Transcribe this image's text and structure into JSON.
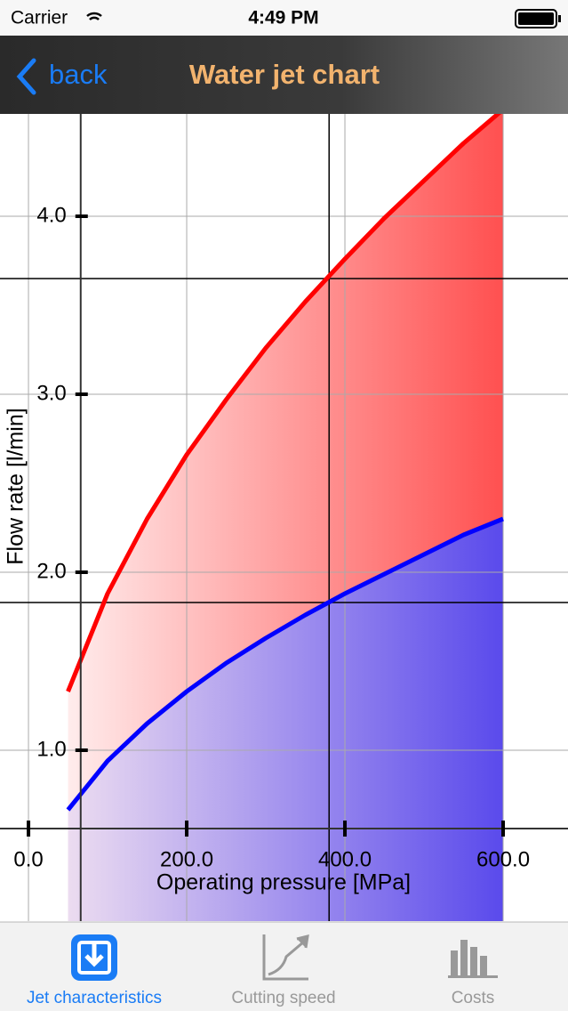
{
  "status_bar": {
    "carrier": "Carrier",
    "time": "4:49 PM"
  },
  "nav": {
    "back": "back",
    "title": "Water jet chart"
  },
  "chart_data": {
    "type": "area-line",
    "x_label": "Operating pressure [MPa]",
    "y_label": "Flow rate [l/min]",
    "x": [
      50,
      100,
      150,
      200,
      250,
      300,
      350,
      400,
      450,
      500,
      550,
      600
    ],
    "series": [
      {
        "color": "#ff0000",
        "values": [
          1.33,
          1.88,
          2.3,
          2.66,
          2.97,
          3.26,
          3.52,
          3.76,
          3.99,
          4.2,
          4.41,
          4.6
        ]
      },
      {
        "color": "#0000ff",
        "values": [
          0.665,
          0.94,
          1.15,
          1.33,
          1.49,
          1.63,
          1.76,
          1.88,
          1.99,
          2.1,
          2.21,
          2.3
        ]
      }
    ],
    "xlim": [
      -36,
      682
    ],
    "ylim": [
      0.04,
      4.575
    ],
    "xticks": [
      {
        "value": 0,
        "label": "0.0"
      },
      {
        "value": 200,
        "label": "200.0"
      },
      {
        "value": 400,
        "label": "400.0"
      },
      {
        "value": 600,
        "label": "600.0"
      }
    ],
    "yticks": [
      {
        "value": 1,
        "label": "1.0"
      },
      {
        "value": 2,
        "label": "2.0"
      },
      {
        "value": 3,
        "label": "3.0"
      },
      {
        "value": 4,
        "label": "4.0"
      }
    ],
    "axis_cross": {
      "x": 66,
      "y": 0.56
    },
    "crosshair": {
      "x": 380,
      "y": [
        3.65,
        1.83
      ]
    },
    "grid": true
  },
  "tabs": [
    "Jet characteristics",
    "Cutting speed",
    "Costs"
  ],
  "active_tab": 0
}
